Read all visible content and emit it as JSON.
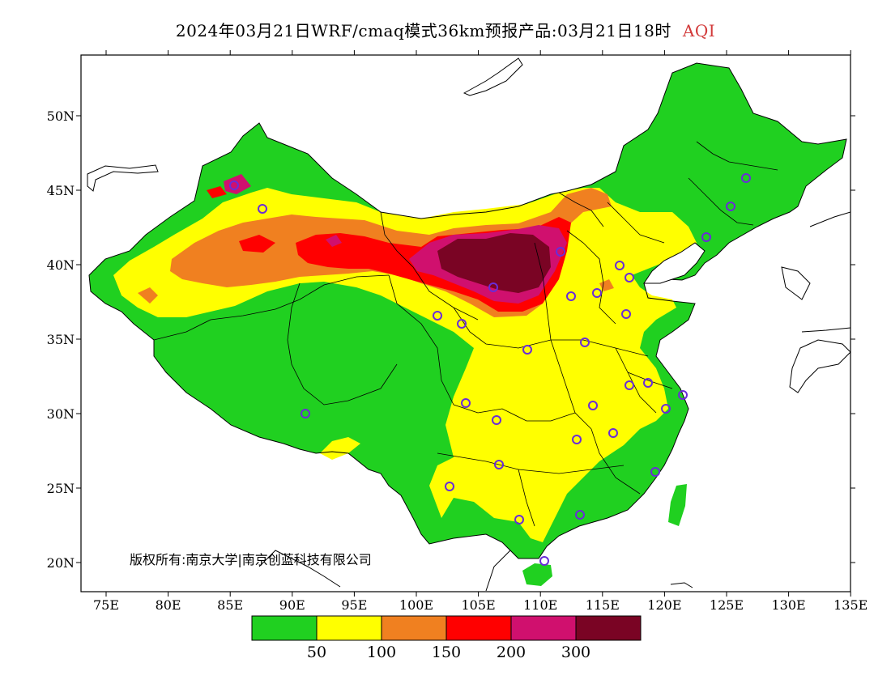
{
  "title": {
    "main": "2024年03月21日WRF/cmaq模式36km预报产品:03月21日18时",
    "variable": "AQI"
  },
  "axes": {
    "lat_labels": [
      "50N",
      "45N",
      "40N",
      "35N",
      "30N",
      "25N",
      "20N"
    ],
    "lon_labels": [
      "75E",
      "80E",
      "85E",
      "90E",
      "95E",
      "100E",
      "105E",
      "110E",
      "115E",
      "120E",
      "125E",
      "130E",
      "135E"
    ]
  },
  "legend": {
    "colors": [
      "#20d020",
      "#ffff00",
      "#f08020",
      "#ff0000",
      "#d0106e",
      "#7a0424"
    ],
    "labels": [
      "50",
      "100",
      "150",
      "200",
      "300"
    ]
  },
  "copyright": "版权所有:南京大学|南京创蓝科技有限公司",
  "colors": {
    "water": "#ffffff",
    "title_accent": "#d23a3a",
    "station_marker": "#6a2cd8"
  }
}
